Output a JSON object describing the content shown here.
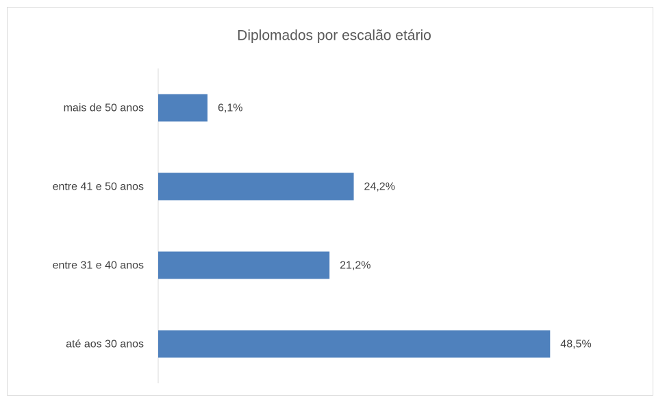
{
  "chart_data": {
    "type": "bar",
    "orientation": "horizontal",
    "title": "Diplomados por escalão etário",
    "categories": [
      "mais de 50 anos",
      "entre 41 e 50 anos",
      "entre 31 e 40 anos",
      "até aos 30 anos"
    ],
    "values": [
      6.1,
      24.2,
      21.2,
      48.5
    ],
    "value_labels": [
      "6,1%",
      "24,2%",
      "21,2%",
      "48,5%"
    ],
    "color": "#4f81bd",
    "xlim": [
      0,
      60
    ]
  }
}
